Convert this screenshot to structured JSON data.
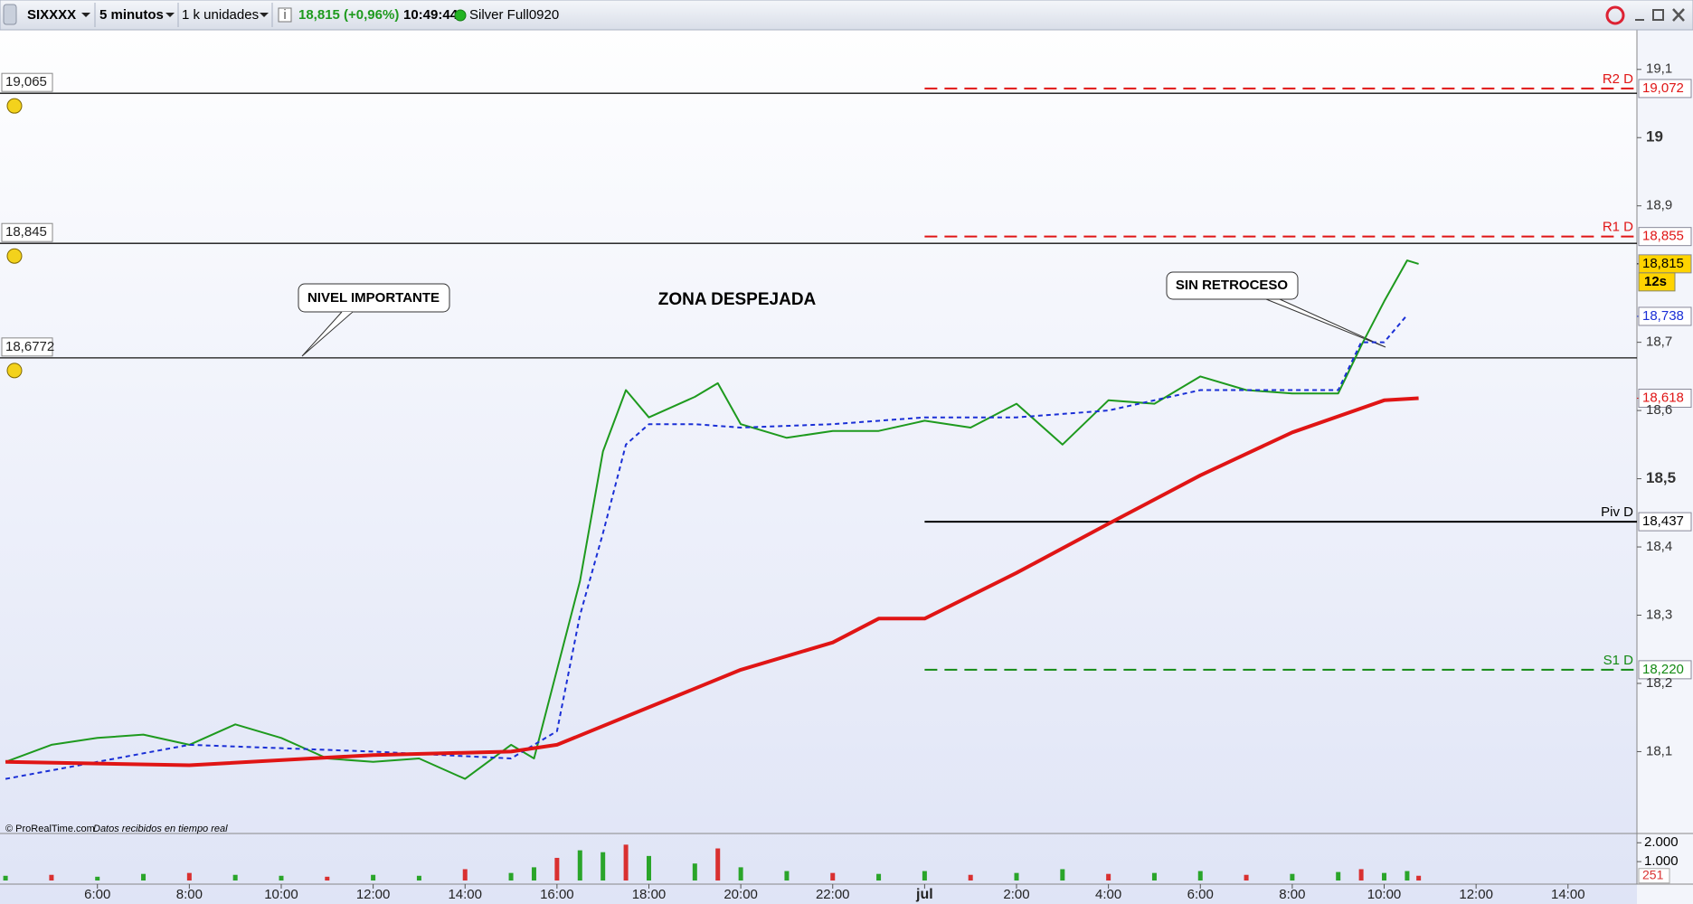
{
  "toolbar": {
    "symbol": "SIXXXX",
    "period": "5 minutos",
    "units": "1 k unidades",
    "quote": "18,815 (+0,96%)",
    "time": "10:49:44",
    "account": "Silver Full0920"
  },
  "chart_data": {
    "type": "line",
    "xlim": [
      3.88,
      39.5
    ],
    "xticks": [
      {
        "value": 6,
        "label": "6:00"
      },
      {
        "value": 8,
        "label": "8:00"
      },
      {
        "value": 10,
        "label": "10:00"
      },
      {
        "value": 12,
        "label": "12:00"
      },
      {
        "value": 14,
        "label": "14:00"
      },
      {
        "value": 16,
        "label": "16:00"
      },
      {
        "value": 18,
        "label": "18:00"
      },
      {
        "value": 20,
        "label": "20:00"
      },
      {
        "value": 22,
        "label": "22:00"
      },
      {
        "value": 24,
        "label": "jul"
      },
      {
        "value": 26,
        "label": "2:00"
      },
      {
        "value": 28,
        "label": "4:00"
      },
      {
        "value": 30,
        "label": "6:00"
      },
      {
        "value": 32,
        "label": "8:00"
      },
      {
        "value": 34,
        "label": "10:00"
      },
      {
        "value": 36,
        "label": "12:00"
      },
      {
        "value": 38,
        "label": "14:00"
      }
    ],
    "ylim": [
      17.98,
      19.158
    ],
    "yticks": [
      {
        "value": 19.1,
        "label": "19,1"
      },
      {
        "value": 19,
        "label": "19"
      },
      {
        "value": 18.9,
        "label": "18,9"
      },
      {
        "value": 18.7,
        "label": "18,7"
      },
      {
        "value": 18.6,
        "label": "18,6"
      },
      {
        "value": 18.5,
        "label": "18,5"
      },
      {
        "value": 18.4,
        "label": "18,4"
      },
      {
        "value": 18.3,
        "label": "18,3"
      },
      {
        "value": 18.2,
        "label": "18,2"
      },
      {
        "value": 18.1,
        "label": "18,1"
      }
    ],
    "series": [
      {
        "color": "#1e9a1e",
        "width": 2,
        "x": [
          4,
          5,
          6,
          7,
          8,
          9,
          10,
          11,
          12,
          13,
          14,
          15,
          15.5,
          16,
          16.5,
          17,
          17.5,
          18,
          19,
          19.5,
          20,
          21,
          22,
          23,
          24,
          25,
          26,
          27,
          28,
          29,
          30,
          31,
          32,
          33,
          33.5,
          34,
          34.5,
          34.75
        ],
        "values": [
          18.085,
          18.11,
          18.12,
          18.125,
          18.11,
          18.14,
          18.12,
          18.09,
          18.085,
          18.09,
          18.06,
          18.11,
          18.09,
          18.22,
          18.35,
          18.54,
          18.63,
          18.59,
          18.62,
          18.64,
          18.58,
          18.56,
          18.57,
          18.57,
          18.585,
          18.575,
          18.61,
          18.55,
          18.615,
          18.61,
          18.65,
          18.63,
          18.625,
          18.625,
          18.695,
          18.76,
          18.82,
          18.815
        ]
      },
      {
        "color": "#1a2fd6",
        "width": 2,
        "dash": true,
        "x": [
          4,
          8,
          12,
          15,
          16,
          16.5,
          17,
          17.5,
          18,
          19,
          20,
          22,
          24,
          26,
          28,
          30,
          32,
          33,
          33.5,
          34,
          34.5
        ],
        "values": [
          18.06,
          18.11,
          18.1,
          18.09,
          18.13,
          18.3,
          18.42,
          18.55,
          18.58,
          18.58,
          18.575,
          18.58,
          18.59,
          18.59,
          18.6,
          18.63,
          18.63,
          18.63,
          18.7,
          18.7,
          18.74
        ]
      },
      {
        "color": "#e01515",
        "width": 4,
        "x": [
          4,
          8,
          12,
          15,
          16,
          18,
          20,
          22,
          23,
          24,
          26,
          28,
          30,
          32,
          34,
          34.75
        ],
        "values": [
          18.085,
          18.08,
          18.095,
          18.1,
          18.11,
          18.165,
          18.22,
          18.26,
          18.295,
          18.295,
          18.362,
          18.434,
          18.505,
          18.568,
          18.615,
          18.618
        ]
      }
    ],
    "levels": [
      {
        "value": 19.065,
        "label": "19,065"
      },
      {
        "value": 18.845,
        "label": "18,845"
      },
      {
        "value": 18.6772,
        "label": "18,6772"
      }
    ],
    "pivots": [
      {
        "name": "R2 D",
        "value": 19.072,
        "label": "19,072",
        "color": "#e01515",
        "dash": true,
        "x_start": 24
      },
      {
        "name": "R1 D",
        "value": 18.855,
        "label": "18,855",
        "color": "#e01515",
        "dash": true,
        "x_start": 24
      },
      {
        "name": "Piv D",
        "value": 18.437,
        "label": "18,437",
        "color": "#000000",
        "dash": false,
        "x_start": 24
      },
      {
        "name": "S1 D",
        "value": 18.22,
        "label": "18,220",
        "color": "#138a13",
        "dash": true,
        "x_start": 24
      }
    ],
    "price_tags": [
      {
        "value": 18.815,
        "label": "18,815",
        "color": "#000000",
        "background": "#ffd400"
      },
      {
        "value": 18.738,
        "label": "18,738",
        "color": "#1a2fd6",
        "background": "#ffffff"
      },
      {
        "value": 18.618,
        "label": "18,618",
        "color": "#e01515",
        "background": "#ffffff"
      }
    ],
    "countdown": "12s",
    "annotations": [
      "NIVEL IMPORTANTE",
      "ZONA DESPEJADA",
      "SIN RETROCESO"
    ],
    "volume": {
      "x": [
        4,
        5,
        6,
        7,
        8,
        9,
        10,
        11,
        12,
        13,
        14,
        15,
        15.5,
        16,
        16.5,
        17,
        17.5,
        18,
        19,
        19.5,
        20,
        21,
        22,
        23,
        24,
        25,
        26,
        27,
        28,
        29,
        30,
        31,
        32,
        33,
        33.5,
        34,
        34.5,
        34.75
      ],
      "values": [
        250,
        300,
        200,
        350,
        400,
        300,
        250,
        200,
        300,
        250,
        600,
        400,
        700,
        1200,
        1600,
        1500,
        1900,
        1300,
        900,
        1700,
        700,
        500,
        400,
        350,
        500,
        300,
        400,
        600,
        350,
        400,
        500,
        300,
        350,
        450,
        600,
        400,
        500,
        251
      ],
      "color": "#2aa52a",
      "ylim": [
        0,
        2300
      ],
      "yticks": [
        {
          "value": 2000,
          "label": "2.000"
        },
        {
          "value": 1000,
          "label": "1.000"
        }
      ],
      "last": {
        "value": 251,
        "label": "251"
      }
    }
  },
  "footer": {
    "copyright": "© ProRealTime.com",
    "status": "Datos recibidos en tiempo real"
  }
}
